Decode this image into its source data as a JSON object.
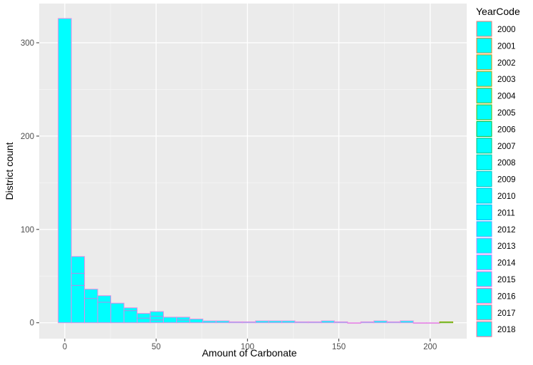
{
  "chart_data": {
    "type": "histogram",
    "xlabel": "Amount of Carbonate",
    "ylabel": "District count",
    "xlim": [
      -14,
      220
    ],
    "ylim": [
      -17,
      342
    ],
    "xticks": [
      0,
      50,
      100,
      150,
      200
    ],
    "yticks": [
      0,
      100,
      200,
      300
    ],
    "grid": true,
    "legend_position": "right",
    "legend_title": "YearCode",
    "fill_color": "#00FFFF",
    "bin_width": 7.2,
    "bin_centers": [
      0,
      7.2,
      14.4,
      21.6,
      28.8,
      36,
      43.2,
      50.4,
      57.6,
      64.8,
      72,
      79.2,
      86.4,
      93.6,
      100.8,
      108,
      115.2,
      122.4,
      129.6,
      136.8,
      144,
      151.2,
      158.4,
      165.6,
      172.8,
      180,
      187.2,
      194.4,
      201.6,
      208.8
    ],
    "totals": [
      326,
      71,
      36,
      29,
      21,
      16,
      10,
      12,
      6,
      6,
      4,
      2,
      2,
      1,
      1,
      2,
      2,
      2,
      1,
      1,
      2,
      1,
      0,
      1,
      2,
      1,
      2,
      0,
      0,
      1
    ],
    "stack_boundaries": [
      [],
      [
        40,
        53
      ],
      [
        26
      ],
      [
        22
      ],
      [],
      [
        13
      ],
      [
        5
      ],
      [
        7,
        3
      ],
      [],
      [
        3
      ],
      [],
      [],
      [],
      [],
      [],
      [],
      [],
      [],
      [],
      [],
      [],
      [],
      [],
      [],
      [],
      [],
      [],
      [],
      [],
      []
    ],
    "series": [
      {
        "name": "2000",
        "color": "#F8766D"
      },
      {
        "name": "2001",
        "color": "#E88526"
      },
      {
        "name": "2002",
        "color": "#D39200"
      },
      {
        "name": "2003",
        "color": "#B79F00"
      },
      {
        "name": "2004",
        "color": "#93AA00"
      },
      {
        "name": "2005",
        "color": "#5EB300"
      },
      {
        "name": "2006",
        "color": "#00BA38"
      },
      {
        "name": "2007",
        "color": "#00BF74"
      },
      {
        "name": "2008",
        "color": "#00C19F"
      },
      {
        "name": "2009",
        "color": "#00BFC4"
      },
      {
        "name": "2010",
        "color": "#00B9E3"
      },
      {
        "name": "2011",
        "color": "#00ADFA"
      },
      {
        "name": "2012",
        "color": "#619CFF"
      },
      {
        "name": "2013",
        "color": "#AE87FF"
      },
      {
        "name": "2014",
        "color": "#DB72FB"
      },
      {
        "name": "2015",
        "color": "#F564E3"
      },
      {
        "name": "2016",
        "color": "#FF61C3"
      },
      {
        "name": "2017",
        "color": "#FF6C91"
      },
      {
        "name": "2018",
        "color": "#FF6A98"
      }
    ],
    "last_bin_outline": "#93AA00"
  }
}
